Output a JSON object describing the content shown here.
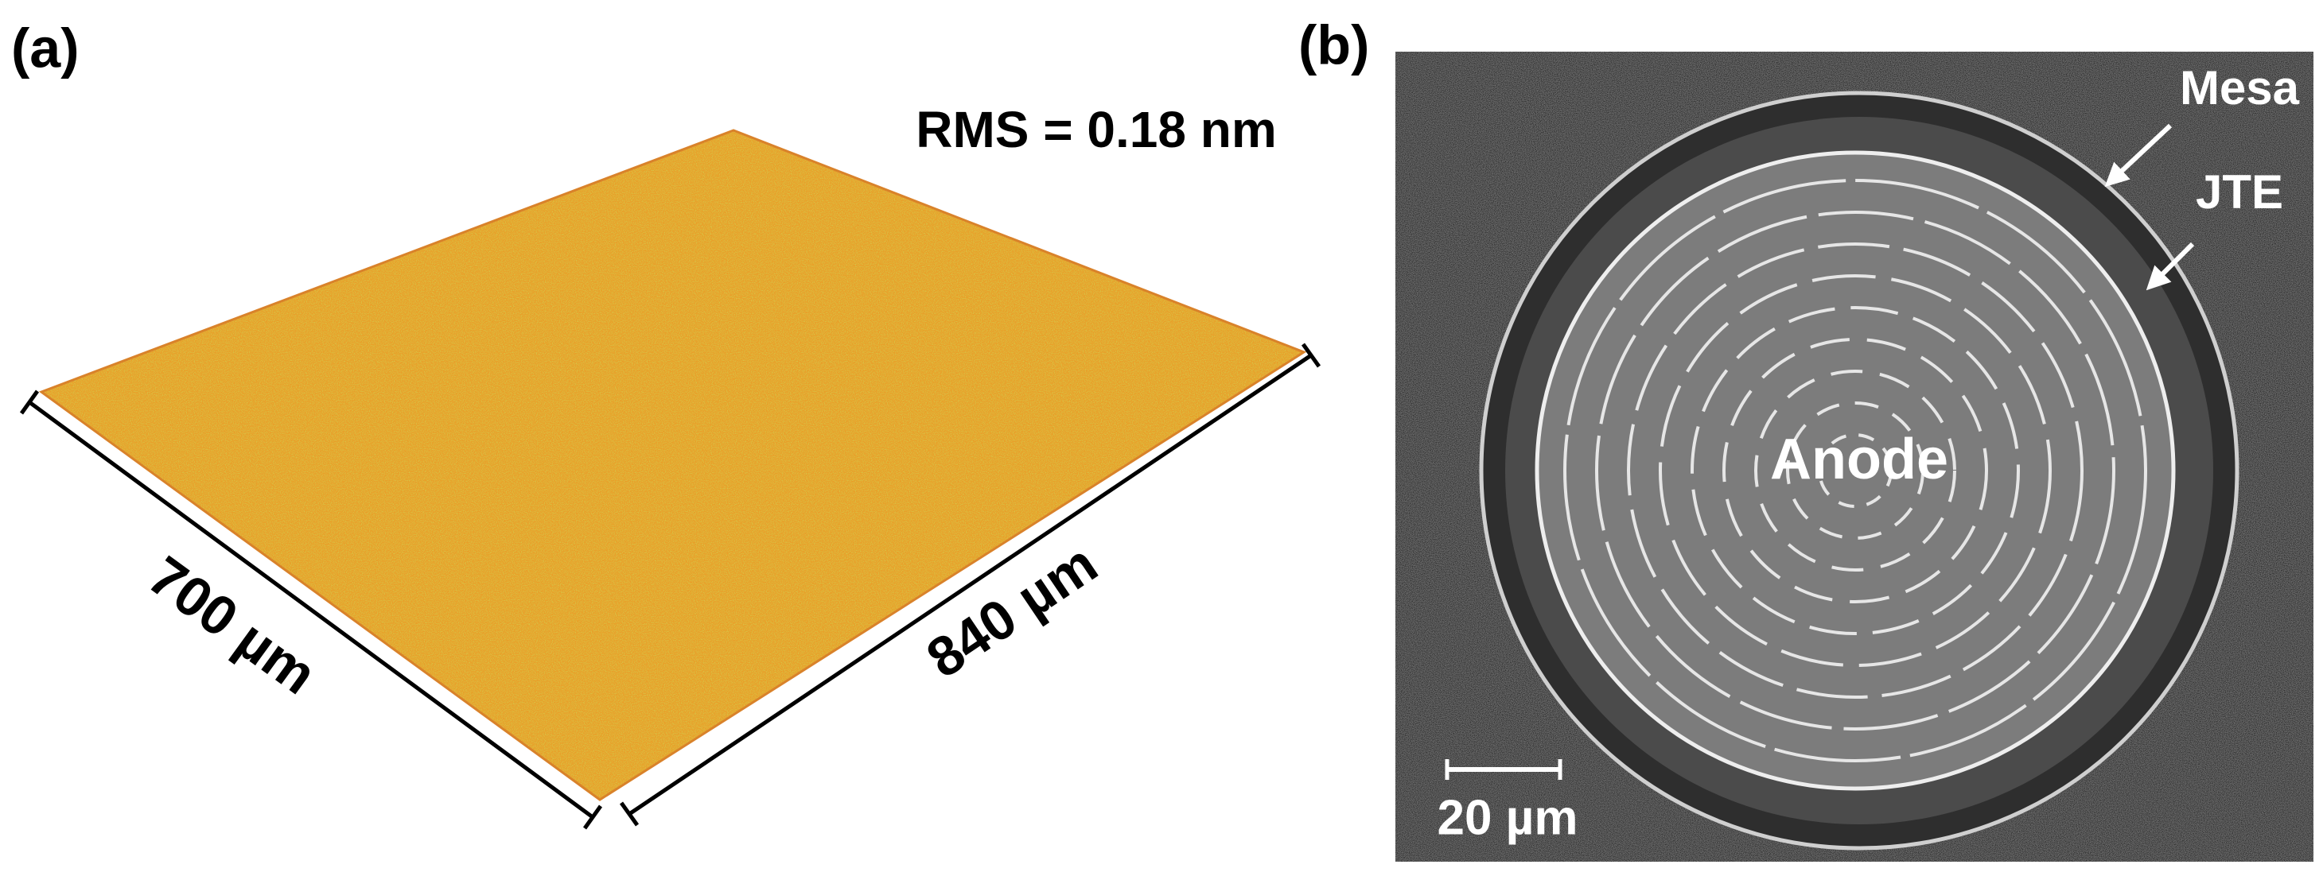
{
  "panels": [
    {
      "label": "(a)",
      "rms": "RMS = 0.18 nm",
      "width_label": "700 µm",
      "length_label": "840 µm"
    },
    {
      "label": "(b)",
      "center_label": "Anode",
      "arrow_labels": [
        "Mesa",
        "JTE"
      ],
      "scale_bar_label": "20 µm"
    }
  ]
}
